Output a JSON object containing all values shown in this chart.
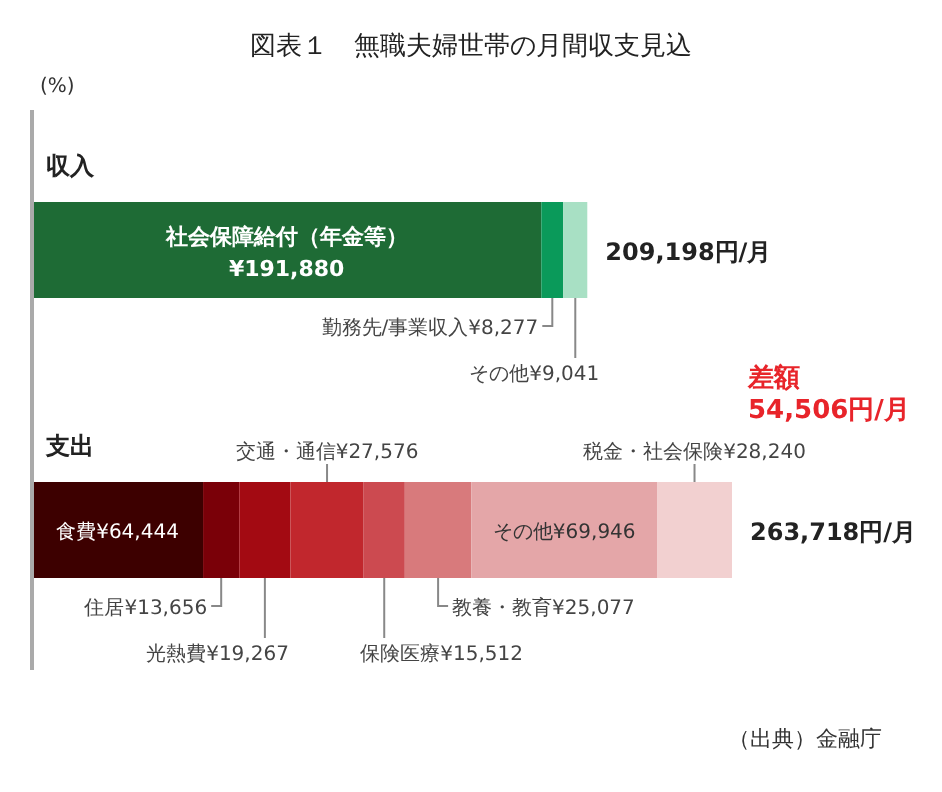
{
  "chart_data": {
    "type": "bar",
    "orientation": "horizontal",
    "stacked": true,
    "title": "図表１　無職夫婦世帯の月間収支見込",
    "ylabel": "(%)",
    "categories": [
      "収入",
      "支出"
    ],
    "series": [
      {
        "name": "社会保障給付（年金等）",
        "color": "#1e6b35",
        "values": [
          191880,
          null
        ],
        "value_labels": [
          "¥191,880",
          null
        ]
      },
      {
        "name": "勤務先/事業収入",
        "color": "#0a9a5a",
        "values": [
          8277,
          null
        ],
        "value_labels": [
          "¥8,277",
          null
        ]
      },
      {
        "name": "その他",
        "color": "#a8e0c4",
        "values": [
          9041,
          null
        ],
        "value_labels": [
          "¥9,041",
          null
        ]
      },
      {
        "name": "食費",
        "color": "#3d0000",
        "values": [
          null,
          64444
        ],
        "value_labels": [
          null,
          "¥64,444"
        ]
      },
      {
        "name": "住居",
        "color": "#7a0008",
        "values": [
          null,
          13656
        ],
        "value_labels": [
          null,
          "¥13,656"
        ]
      },
      {
        "name": "光熱費",
        "color": "#a30a12",
        "values": [
          null,
          19267
        ],
        "value_labels": [
          null,
          "¥19,267"
        ]
      },
      {
        "name": "交通・通信",
        "color": "#c1272d",
        "values": [
          null,
          27576
        ],
        "value_labels": [
          null,
          "¥27,576"
        ]
      },
      {
        "name": "保険医療",
        "color": "#cc4a50",
        "values": [
          null,
          15512
        ],
        "value_labels": [
          null,
          "¥15,512"
        ]
      },
      {
        "name": "教養・教育",
        "color": "#d87a7c",
        "values": [
          null,
          25077
        ],
        "value_labels": [
          null,
          "¥25,077"
        ]
      },
      {
        "name": "その他",
        "color": "#e4a6a8",
        "values": [
          null,
          69946
        ],
        "value_labels": [
          null,
          "¥69,946"
        ]
      },
      {
        "name": "税金・社会保険",
        "color": "#f2d0d0",
        "values": [
          null,
          28240
        ],
        "value_labels": [
          null,
          "¥28,240"
        ]
      }
    ],
    "totals": [
      "209,198円/月",
      "263,718円/月"
    ],
    "annotations": [
      "差額\n54,506円/月",
      "（出典）金融庁"
    ]
  }
}
